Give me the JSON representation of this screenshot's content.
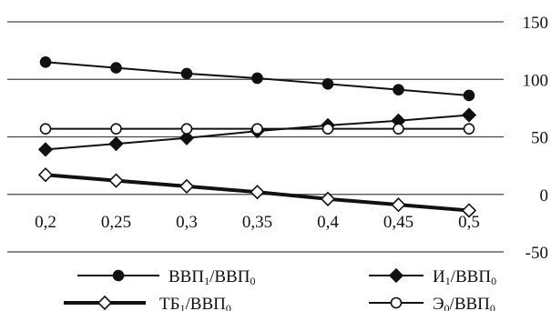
{
  "chart_data": {
    "type": "line",
    "x": [
      0.2,
      0.25,
      0.3,
      0.35,
      0.4,
      0.45,
      0.5
    ],
    "categories": [
      "0,2",
      "0,25",
      "0,3",
      "0,35",
      "0,4",
      "0,45",
      "0,5"
    ],
    "ylim": [
      -50,
      150
    ],
    "yticks": [
      -50,
      0,
      50,
      100,
      150
    ],
    "ytick_labels": [
      "-50",
      "0",
      "50",
      "100",
      "150"
    ],
    "y_axis_side": "right",
    "grid": "horizontal",
    "legend_position": "bottom",
    "series": [
      {
        "key": "vvp",
        "values": [
          115,
          110,
          105,
          101,
          96,
          91,
          86
        ],
        "marker": "filled-circle",
        "legend": {
          "pre": "ВВП",
          "sub1": "1",
          "mid": "/ВВП",
          "sub2": "0"
        }
      },
      {
        "key": "i",
        "values": [
          39,
          44,
          49,
          55,
          60,
          64,
          69
        ],
        "marker": "filled-diamond",
        "legend": {
          "pre": "И",
          "sub1": "1",
          "mid": "/ВВП",
          "sub2": "0"
        }
      },
      {
        "key": "tb",
        "values": [
          17,
          12,
          7,
          2,
          -4,
          -9,
          -14
        ],
        "marker": "open-diamond",
        "line": "thick",
        "legend": {
          "pre": "ТБ",
          "sub1": "1",
          "mid": "/ВВП",
          "sub2": "0"
        }
      },
      {
        "key": "e",
        "values": [
          57,
          57,
          57,
          57,
          57,
          57,
          57
        ],
        "marker": "open-circle",
        "legend": {
          "pre": "Э",
          "sub1": "0",
          "mid": "/ВВП",
          "sub2": "0"
        }
      }
    ]
  }
}
